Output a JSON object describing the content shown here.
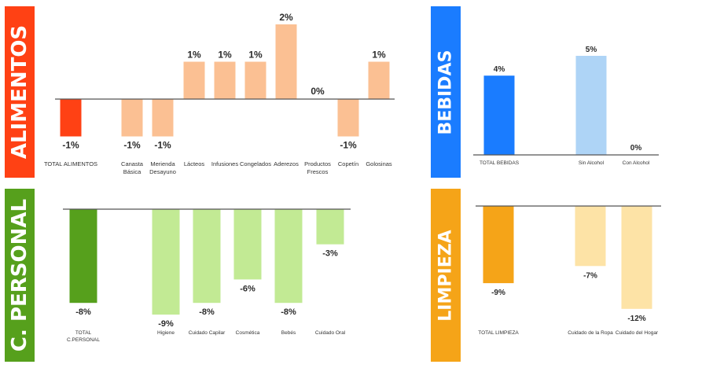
{
  "colors": {
    "alimentos": "#ff4114",
    "bebidas": "#1a7cff",
    "personal": "#56a01c",
    "limpieza": "#f5a418"
  },
  "chart_data": [
    {
      "key": "alimentos",
      "type": "bar",
      "title": "ALIMENTOS",
      "categories": [
        [
          "TOTAL ALIMENTOS"
        ],
        [
          "Canasta",
          "Básica"
        ],
        [
          "Merienda",
          "Desayuno"
        ],
        [
          "Lácteos"
        ],
        [
          "Infusiones"
        ],
        [
          "Congelados"
        ],
        [
          "Aderezos"
        ],
        [
          "Productos",
          "Frescos"
        ],
        [
          "Copetín"
        ],
        [
          "Golosinas"
        ]
      ],
      "values": [
        -1,
        -1,
        -1,
        1,
        1,
        1,
        2,
        0,
        -1,
        1
      ],
      "labels": [
        "-1%",
        "-1%",
        "-1%",
        "1%",
        "1%",
        "1%",
        "2%",
        "0%",
        "-1%",
        "1%"
      ],
      "unit": "%",
      "ylim": [
        -1,
        2
      ],
      "colors": [
        "#ff4114",
        "#fbc093",
        "#fbc093",
        "#fbc093",
        "#fbc093",
        "#fbc093",
        "#fbc093",
        "#fbc093",
        "#fbc093",
        "#fbc093"
      ]
    },
    {
      "key": "bebidas",
      "type": "bar",
      "title": "BEBIDAS",
      "categories": [
        [
          "TOTAL BEBIDAS"
        ],
        [
          "Sin Alcohol"
        ],
        [
          "Con Alcohol"
        ]
      ],
      "values": [
        4,
        5,
        0
      ],
      "labels": [
        "4%",
        "5%",
        "0%"
      ],
      "unit": "%",
      "ylim": [
        0,
        5
      ],
      "colors": [
        "#1a7cff",
        "#aed4f6",
        "#aed4f6"
      ]
    },
    {
      "key": "personal",
      "type": "bar",
      "title": "C. PERSONAL",
      "categories": [
        [
          "TOTAL",
          "C.PERSONAL"
        ],
        [
          "Higiene"
        ],
        [
          "Cuidado Capilar"
        ],
        [
          "Cosmética"
        ],
        [
          "Bebés"
        ],
        [
          "Cuidado Oral"
        ]
      ],
      "values": [
        -8,
        -9,
        -8,
        -6,
        -8,
        -3
      ],
      "labels": [
        "-8%",
        "-9%",
        "-8%",
        "-6%",
        "-8%",
        "-3%"
      ],
      "unit": "%",
      "ylim": [
        -9,
        0
      ],
      "colors": [
        "#56a01c",
        "#c2ea94",
        "#c2ea94",
        "#c2ea94",
        "#c2ea94",
        "#c2ea94"
      ]
    },
    {
      "key": "limpieza",
      "type": "bar",
      "title": "LIMPIEZA",
      "categories": [
        [
          "TOTAL LIMPIEZA"
        ],
        [
          "Cuidado de la Ropa"
        ],
        [
          "Cuidado del Hogar"
        ]
      ],
      "values": [
        -9,
        -7,
        -12
      ],
      "labels": [
        "-9%",
        "-7%",
        "-12%"
      ],
      "unit": "%",
      "ylim": [
        -12,
        0
      ],
      "colors": [
        "#f5a418",
        "#fde3a6",
        "#fde3a6"
      ]
    }
  ]
}
